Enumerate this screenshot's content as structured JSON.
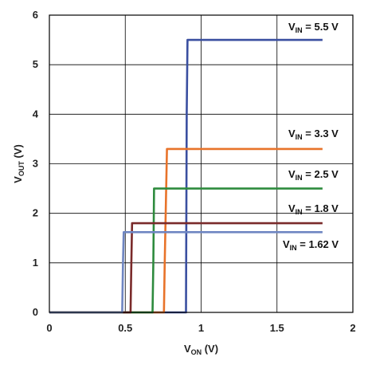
{
  "chart_data": {
    "type": "line",
    "xlabel": {
      "main": "V",
      "sub": "ON",
      "rest": " (V)"
    },
    "ylabel": {
      "main": "V",
      "sub": "OUT",
      "rest": " (V)"
    },
    "xlim": [
      0,
      2
    ],
    "ylim": [
      0,
      6
    ],
    "xticks": [
      0,
      0.5,
      1,
      1.5,
      2
    ],
    "xtick_labels": [
      "0",
      "0.5",
      "1",
      "1.5",
      "2"
    ],
    "yticks": [
      0,
      1,
      2,
      3,
      4,
      5,
      6
    ],
    "ytick_labels": [
      "0",
      "1",
      "2",
      "3",
      "4",
      "5",
      "6"
    ],
    "grid": true,
    "series": [
      {
        "name_main": "V",
        "name_sub": "IN",
        "name_rest": " = 5.5 V",
        "color": "#3a4fa0",
        "x": [
          0,
          0.9,
          0.905,
          0.91,
          1.8
        ],
        "y": [
          0,
          0,
          4,
          5.5,
          5.5
        ]
      },
      {
        "name_main": "V",
        "name_sub": "IN",
        "name_rest": " = 3.3 V",
        "color": "#e8732a",
        "x": [
          0,
          0.755,
          0.76,
          0.775,
          1.8
        ],
        "y": [
          0,
          0,
          1.0,
          3.3,
          3.3
        ]
      },
      {
        "name_main": "V",
        "name_sub": "IN",
        "name_rest": " = 2.5 V",
        "color": "#2e8b3e",
        "x": [
          0,
          0.68,
          0.685,
          0.69,
          1.8
        ],
        "y": [
          0,
          0,
          1.0,
          2.5,
          2.5
        ]
      },
      {
        "name_main": "V",
        "name_sub": "IN",
        "name_rest": " = 1.8 V",
        "color": "#7a2a2a",
        "x": [
          0,
          0.535,
          0.54,
          0.545,
          1.8
        ],
        "y": [
          0,
          0,
          1.0,
          1.8,
          1.8
        ]
      },
      {
        "name_main": "V",
        "name_sub": "IN",
        "name_rest": " = 1.62 V",
        "color": "#6f86c2",
        "x": [
          0,
          0.48,
          0.485,
          0.49,
          1.8
        ],
        "y": [
          0,
          0,
          1.0,
          1.62,
          1.62
        ]
      }
    ]
  }
}
